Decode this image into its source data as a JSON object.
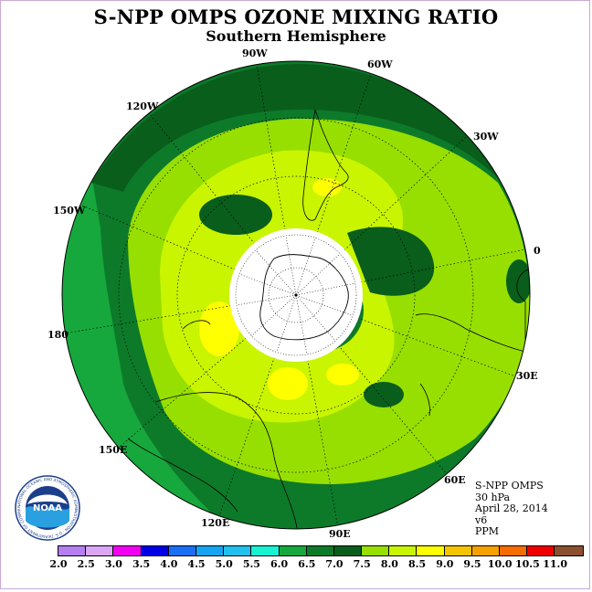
{
  "title": "S-NPP OMPS OZONE MIXING RATIO",
  "subtitle": "Southern Hemisphere",
  "longitude_labels": [
    "90W",
    "60W",
    "120W",
    "30W",
    "150W",
    "0",
    "180",
    "30E",
    "150E",
    "60E",
    "120E",
    "90E"
  ],
  "info": {
    "instrument": "S-NPP OMPS",
    "pressure_level": "30 hPa",
    "date": "April 28, 2014",
    "version": "v6",
    "units": "PPM"
  },
  "colorbar": {
    "ticks": [
      "2.0",
      "2.5",
      "3.0",
      "3.5",
      "4.0",
      "4.5",
      "5.0",
      "5.5",
      "6.0",
      "6.5",
      "7.0",
      "7.5",
      "8.0",
      "8.5",
      "9.0",
      "9.5",
      "10.0",
      "10.5",
      "11.0"
    ],
    "colors": [
      "#b57ff0",
      "#dba7f5",
      "#f200f2",
      "#0000e6",
      "#1a6ff5",
      "#16a4f0",
      "#22c0ee",
      "#19f2d2",
      "#16a83c",
      "#0d7a2a",
      "#095e1c",
      "#97df00",
      "#c9f500",
      "#ffff00",
      "#f5c400",
      "#f5a100",
      "#f56c00",
      "#f00000",
      "#8a5030"
    ]
  },
  "logo": {
    "text": "NOAA",
    "ring_text": "NATIONAL OCEANIC AND ATMOSPHERIC ADMINISTRATION · U.S. DEPARTMENT OF COMMERCE"
  }
}
